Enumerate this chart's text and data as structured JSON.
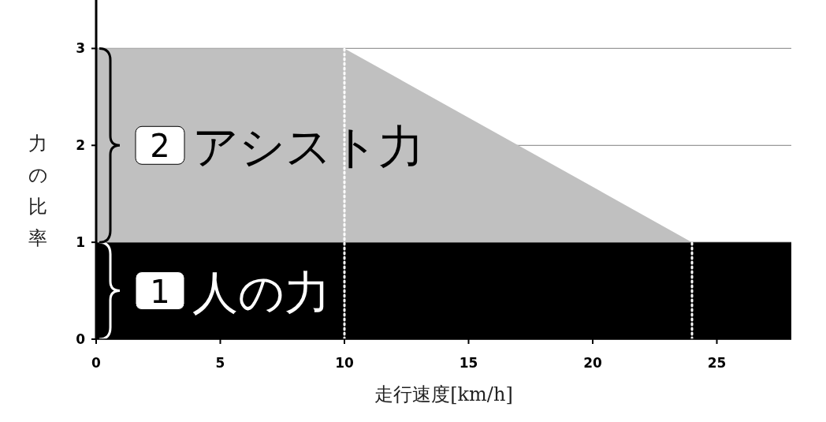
{
  "chart_data": {
    "type": "area",
    "stacked": true,
    "x": [
      0,
      10,
      24,
      28
    ],
    "series": [
      {
        "color": "#000000",
        "values": [
          1,
          1,
          1,
          1
        ]
      },
      {
        "color": "#c0c0c0",
        "values": [
          2,
          2,
          0,
          0
        ]
      }
    ],
    "annotations": [
      "1",
      "人の力",
      "2",
      "アシスト力"
    ],
    "xlabel": "走行速度[km/h]",
    "ylabel": "力の比率",
    "xlim": [
      0,
      28
    ],
    "xticks": [
      0,
      5,
      10,
      15,
      20,
      25
    ],
    "ylim": [
      0,
      3.5
    ],
    "yticks": [
      0,
      1,
      2,
      3
    ],
    "grid": "y",
    "ref_lines": [
      {
        "axis": "x",
        "value": 10,
        "color": "#ffffff",
        "line_style": "dotted"
      },
      {
        "axis": "x",
        "value": 24,
        "color": "#ffffff",
        "line_style": "dotted"
      }
    ]
  }
}
